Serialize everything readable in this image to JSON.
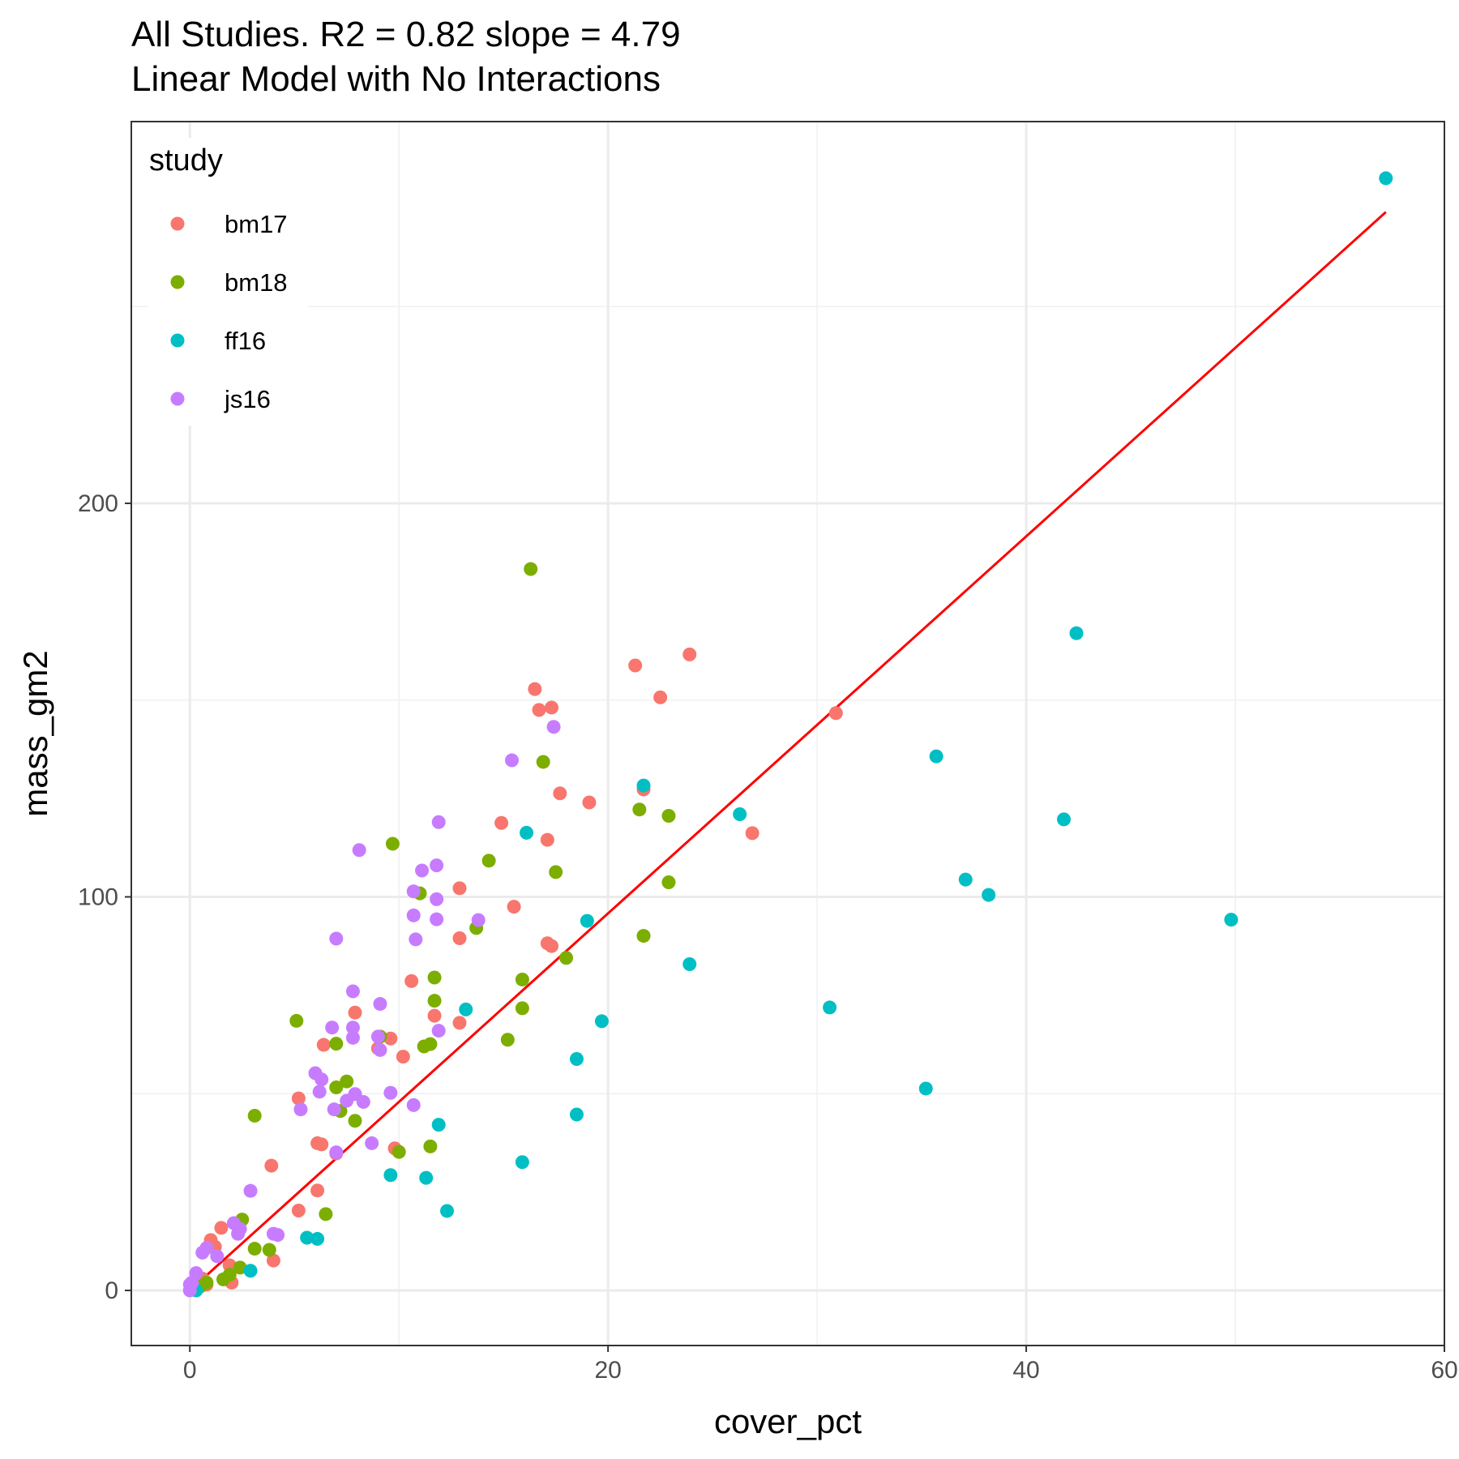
{
  "chart_data": {
    "type": "scatter",
    "title": "All Studies. R2 =  0.82 slope =  4.79",
    "subtitle": "Linear Model with No Interactions",
    "xlabel": "cover_pct",
    "ylabel": "mass_gm2",
    "xlim": [
      -2.8,
      60
    ],
    "ylim": [
      -14,
      297
    ],
    "x_ticks": [
      0,
      20,
      40,
      60
    ],
    "y_ticks": [
      0,
      100,
      200
    ],
    "x_tick_labels": [
      "0",
      "20",
      "40",
      "60"
    ],
    "y_tick_labels": [
      "0",
      "100",
      "200"
    ],
    "grid": true,
    "legend": {
      "title": "study",
      "position": "top-left"
    },
    "fit_line": {
      "color": "#ff0000",
      "x": [
        0,
        57.2
      ],
      "y": [
        0,
        274
      ]
    },
    "series": [
      {
        "name": "bm17",
        "color": "#F8766D",
        "points": [
          [
            1.0,
            12.8
          ],
          [
            1.5,
            15.9
          ],
          [
            1.2,
            11.1
          ],
          [
            1.9,
            6.4
          ],
          [
            2.0,
            2.0
          ],
          [
            0.8,
            1.5
          ],
          [
            0.6,
            3.0
          ],
          [
            3.9,
            31.7
          ],
          [
            4.0,
            7.6
          ],
          [
            5.2,
            48.8
          ],
          [
            5.2,
            20.3
          ],
          [
            6.1,
            25.4
          ],
          [
            6.1,
            37.4
          ],
          [
            6.3,
            37.1
          ],
          [
            6.4,
            62.4
          ],
          [
            7.0,
            34.8
          ],
          [
            7.9,
            70.6
          ],
          [
            9.0,
            61.5
          ],
          [
            9.6,
            64.0
          ],
          [
            9.8,
            36.1
          ],
          [
            10.2,
            59.4
          ],
          [
            10.6,
            78.6
          ],
          [
            11.7,
            69.8
          ],
          [
            12.9,
            102.2
          ],
          [
            12.9,
            89.5
          ],
          [
            12.9,
            68.0
          ],
          [
            14.9,
            118.8
          ],
          [
            15.5,
            97.5
          ],
          [
            16.5,
            152.8
          ],
          [
            16.7,
            147.5
          ],
          [
            17.1,
            114.5
          ],
          [
            17.1,
            88.2
          ],
          [
            17.3,
            148.1
          ],
          [
            17.3,
            87.5
          ],
          [
            17.7,
            126.3
          ],
          [
            19.1,
            124.0
          ],
          [
            21.3,
            158.8
          ],
          [
            21.7,
            127.3
          ],
          [
            22.5,
            150.7
          ],
          [
            23.9,
            161.6
          ],
          [
            26.9,
            116.2
          ],
          [
            30.9,
            146.7
          ]
        ]
      },
      {
        "name": "bm18",
        "color": "#7CAE00",
        "points": [
          [
            0.2,
            0.5
          ],
          [
            0.5,
            1.0
          ],
          [
            0.8,
            2.0
          ],
          [
            1.6,
            2.8
          ],
          [
            1.9,
            4.0
          ],
          [
            2.4,
            5.8
          ],
          [
            2.5,
            18.0
          ],
          [
            3.1,
            44.4
          ],
          [
            3.1,
            10.6
          ],
          [
            3.8,
            10.3
          ],
          [
            5.1,
            68.5
          ],
          [
            6.5,
            19.4
          ],
          [
            7.0,
            51.6
          ],
          [
            7.0,
            62.7
          ],
          [
            7.2,
            45.6
          ],
          [
            7.5,
            53.1
          ],
          [
            7.9,
            43.1
          ],
          [
            9.1,
            64.5
          ],
          [
            9.7,
            113.5
          ],
          [
            10.0,
            35.2
          ],
          [
            11.0,
            100.9
          ],
          [
            11.2,
            62.0
          ],
          [
            11.5,
            62.6
          ],
          [
            11.5,
            36.6
          ],
          [
            11.7,
            79.5
          ],
          [
            11.7,
            73.6
          ],
          [
            13.7,
            92.1
          ],
          [
            14.3,
            109.2
          ],
          [
            15.2,
            63.7
          ],
          [
            15.9,
            79.0
          ],
          [
            15.9,
            71.7
          ],
          [
            16.3,
            183.3
          ],
          [
            16.9,
            134.3
          ],
          [
            17.5,
            106.3
          ],
          [
            18.0,
            84.5
          ],
          [
            21.5,
            122.2
          ],
          [
            21.7,
            90.1
          ],
          [
            22.9,
            120.6
          ],
          [
            22.9,
            103.7
          ]
        ]
      },
      {
        "name": "ff16",
        "color": "#00BFC4",
        "points": [
          [
            0.3,
            0.0
          ],
          [
            2.9,
            5.0
          ],
          [
            5.6,
            13.4
          ],
          [
            6.1,
            13.1
          ],
          [
            9.6,
            29.3
          ],
          [
            11.3,
            28.6
          ],
          [
            11.9,
            42.1
          ],
          [
            12.3,
            20.2
          ],
          [
            13.2,
            71.4
          ],
          [
            15.9,
            32.6
          ],
          [
            16.1,
            116.3
          ],
          [
            18.5,
            44.7
          ],
          [
            18.5,
            58.8
          ],
          [
            19.0,
            93.9
          ],
          [
            19.7,
            68.4
          ],
          [
            21.7,
            128.3
          ],
          [
            23.9,
            82.9
          ],
          [
            26.3,
            121.0
          ],
          [
            30.6,
            71.9
          ],
          [
            35.2,
            51.3
          ],
          [
            35.7,
            135.7
          ],
          [
            37.1,
            104.4
          ],
          [
            38.2,
            100.5
          ],
          [
            41.8,
            119.7
          ],
          [
            42.4,
            167.0
          ],
          [
            49.8,
            94.2
          ],
          [
            57.2,
            282.6
          ]
        ]
      },
      {
        "name": "js16",
        "color": "#C77CFF",
        "points": [
          [
            0.0,
            0.0
          ],
          [
            0.0,
            1.5
          ],
          [
            0.1,
            2.0
          ],
          [
            0.3,
            4.4
          ],
          [
            0.6,
            9.6
          ],
          [
            0.8,
            10.8
          ],
          [
            1.3,
            8.7
          ],
          [
            2.1,
            17.1
          ],
          [
            2.3,
            14.4
          ],
          [
            2.4,
            15.6
          ],
          [
            2.9,
            25.3
          ],
          [
            4.0,
            14.4
          ],
          [
            4.2,
            14.1
          ],
          [
            5.3,
            46.0
          ],
          [
            6.0,
            55.2
          ],
          [
            6.2,
            50.5
          ],
          [
            6.3,
            53.6
          ],
          [
            6.8,
            66.8
          ],
          [
            6.9,
            46.0
          ],
          [
            7.0,
            35.1
          ],
          [
            7.0,
            89.4
          ],
          [
            7.5,
            48.2
          ],
          [
            7.8,
            66.8
          ],
          [
            7.8,
            64.2
          ],
          [
            7.8,
            76.0
          ],
          [
            7.9,
            49.9
          ],
          [
            8.1,
            111.9
          ],
          [
            8.3,
            47.9
          ],
          [
            8.7,
            37.4
          ],
          [
            9.0,
            64.5
          ],
          [
            9.1,
            61.1
          ],
          [
            9.1,
            72.8
          ],
          [
            9.6,
            50.2
          ],
          [
            10.7,
            47.1
          ],
          [
            10.7,
            101.4
          ],
          [
            10.7,
            95.3
          ],
          [
            10.8,
            89.2
          ],
          [
            11.1,
            106.7
          ],
          [
            11.8,
            108.0
          ],
          [
            11.8,
            94.3
          ],
          [
            11.8,
            99.4
          ],
          [
            11.9,
            66.0
          ],
          [
            11.9,
            119.0
          ],
          [
            13.8,
            94.1
          ],
          [
            15.4,
            134.7
          ],
          [
            17.4,
            143.2
          ]
        ]
      }
    ]
  }
}
